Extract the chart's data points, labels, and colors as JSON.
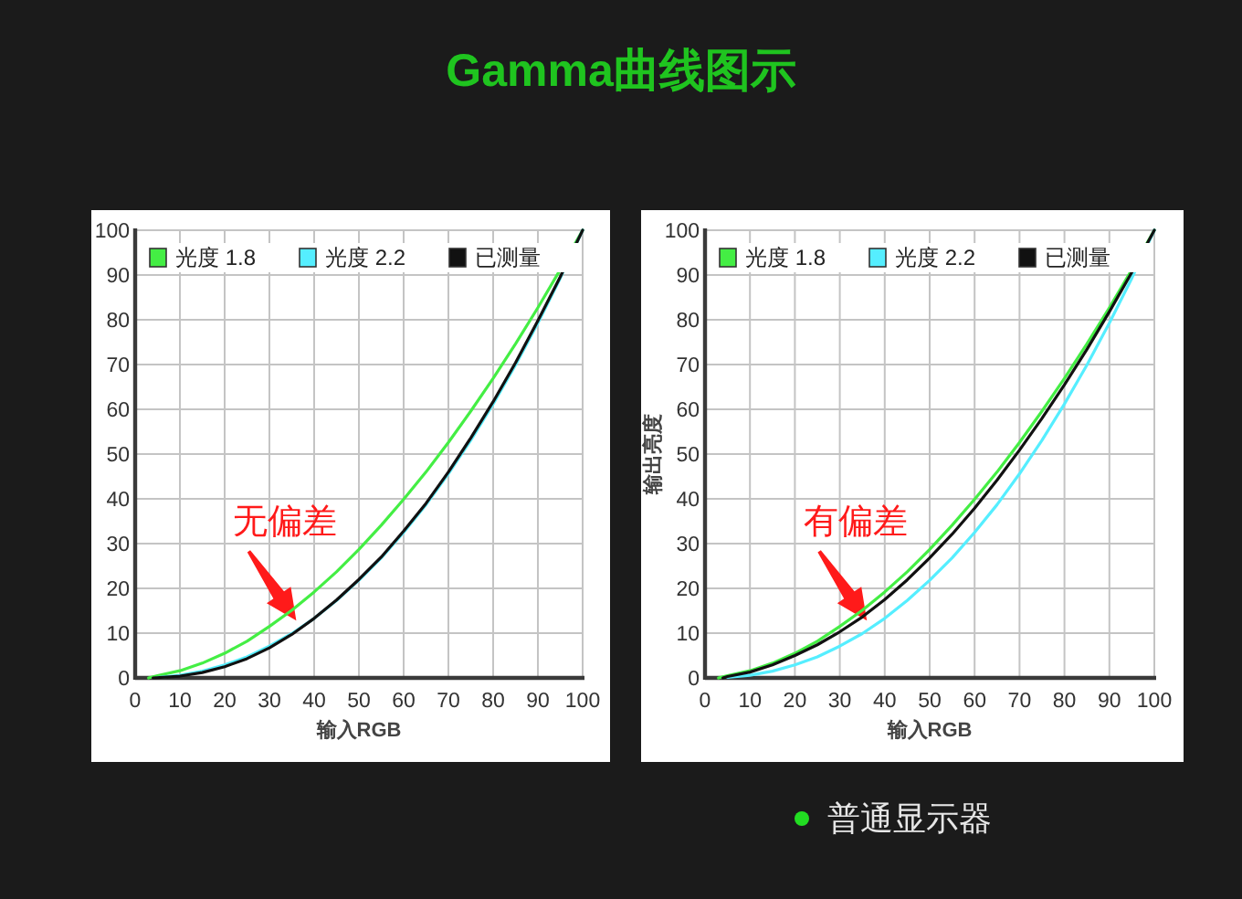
{
  "chart_data": [
    {
      "type": "line",
      "title": "Gamma曲线图示",
      "xlabel": "输入RGB",
      "series": [
        {
          "name": "光度 1.8",
          "color": "#44ee44",
          "x": [
            3,
            5,
            10,
            15,
            20,
            25,
            30,
            35,
            40,
            45,
            50,
            55,
            60,
            65,
            70,
            75,
            80,
            85,
            90,
            95,
            100
          ],
          "values": [
            0,
            0.5,
            1.6,
            3.3,
            5.5,
            8.2,
            11.5,
            15.1,
            19.2,
            23.7,
            28.7,
            34.1,
            39.9,
            46.0,
            52.6,
            59.6,
            66.9,
            74.6,
            82.7,
            91.2,
            100
          ]
        },
        {
          "name": "光度 2.2",
          "color": "#55eeff",
          "x": [
            5,
            10,
            15,
            20,
            25,
            30,
            35,
            40,
            45,
            50,
            55,
            60,
            65,
            70,
            75,
            80,
            85,
            90,
            95,
            100
          ],
          "values": [
            0.1,
            0.6,
            1.5,
            2.9,
            4.7,
            7.1,
            9.9,
            13.3,
            17.3,
            21.8,
            26.8,
            32.5,
            38.7,
            45.6,
            53.1,
            61.2,
            69.9,
            79.3,
            89.3,
            100
          ]
        },
        {
          "name": "已测量",
          "color": "#111111",
          "x": [
            4,
            10,
            15,
            20,
            25,
            30,
            35,
            40,
            45,
            50,
            55,
            60,
            65,
            70,
            75,
            80,
            85,
            90,
            95,
            100
          ],
          "values": [
            0,
            0.4,
            1.2,
            2.5,
            4.3,
            6.7,
            9.7,
            13.3,
            17.4,
            22.0,
            27.0,
            32.8,
            39.0,
            46.0,
            53.6,
            61.7,
            70.4,
            79.8,
            89.6,
            100
          ]
        }
      ],
      "xlim": [
        0,
        100
      ],
      "ylim": [
        0,
        100
      ],
      "xticks": [
        0,
        10,
        20,
        30,
        40,
        50,
        60,
        70,
        80,
        90,
        100
      ],
      "yticks": [
        0,
        10,
        20,
        30,
        40,
        50,
        60,
        70,
        80,
        90,
        100
      ],
      "grid": true,
      "legend": "top",
      "annotations": [
        {
          "text": "无偏差",
          "x": 36,
          "y": 12.8
        }
      ]
    },
    {
      "type": "line",
      "xlabel": "输入RGB",
      "ylabel": "输出亮度",
      "series": [
        {
          "name": "光度 1.8",
          "color": "#44ee44",
          "x": [
            3,
            5,
            10,
            15,
            20,
            25,
            30,
            35,
            40,
            45,
            50,
            55,
            60,
            65,
            70,
            75,
            80,
            85,
            90,
            95,
            100
          ],
          "values": [
            0,
            0.5,
            1.6,
            3.3,
            5.5,
            8.2,
            11.5,
            15.1,
            19.2,
            23.7,
            28.7,
            34.1,
            39.9,
            46.0,
            52.6,
            59.6,
            66.9,
            74.6,
            82.7,
            91.2,
            100
          ]
        },
        {
          "name": "光度 2.2",
          "color": "#55eeff",
          "x": [
            5,
            10,
            15,
            20,
            25,
            30,
            35,
            40,
            45,
            50,
            55,
            60,
            65,
            70,
            75,
            80,
            85,
            90,
            95,
            100
          ],
          "values": [
            0.1,
            0.6,
            1.5,
            2.9,
            4.7,
            7.1,
            9.9,
            13.3,
            17.3,
            21.8,
            26.8,
            32.5,
            38.7,
            45.6,
            53.1,
            61.2,
            69.9,
            79.3,
            89.3,
            100
          ]
        },
        {
          "name": "已测量",
          "color": "#111111",
          "x": [
            4,
            5,
            10,
            15,
            20,
            25,
            30,
            35,
            40,
            45,
            50,
            55,
            60,
            65,
            70,
            75,
            80,
            85,
            90,
            95,
            100
          ],
          "values": [
            0,
            0.3,
            1.3,
            2.9,
            5.0,
            7.4,
            10.3,
            13.6,
            17.5,
            21.9,
            26.8,
            32.1,
            37.9,
            44.2,
            50.9,
            58.0,
            65.5,
            73.4,
            81.8,
            90.6,
            100
          ]
        }
      ],
      "xlim": [
        0,
        100
      ],
      "ylim": [
        0,
        100
      ],
      "xticks": [
        0,
        10,
        20,
        30,
        40,
        50,
        60,
        70,
        80,
        90,
        100
      ],
      "yticks": [
        0,
        10,
        20,
        30,
        40,
        50,
        60,
        70,
        80,
        90,
        100
      ],
      "grid": true,
      "legend": "top",
      "annotations": [
        {
          "text": "有偏差",
          "x": 36,
          "y": 12.8
        },
        "普通显示器"
      ]
    }
  ]
}
